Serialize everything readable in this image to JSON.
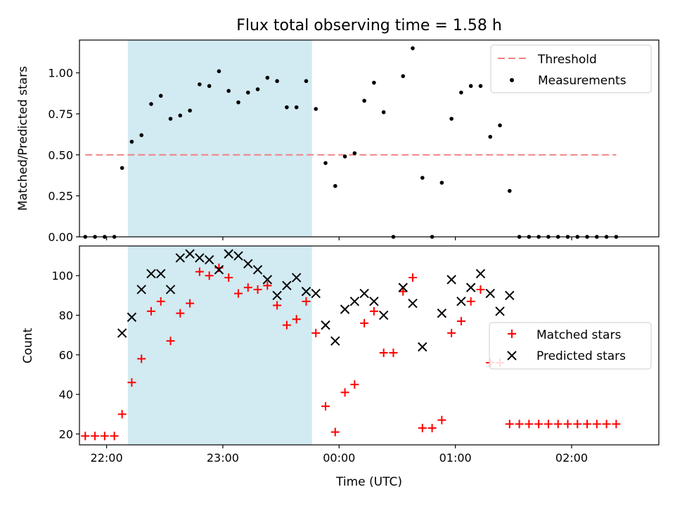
{
  "chart_data": [
    {
      "type": "scatter",
      "title": "Flux total observing time = 1.58 h",
      "xlabel": "",
      "ylabel": "Matched/Predicted stars",
      "ylim": [
        0,
        1.2
      ],
      "yticks": [
        0.0,
        0.25,
        0.5,
        0.75,
        1.0
      ],
      "ytick_labels": [
        "0.00",
        "0.25",
        "0.50",
        "0.75",
        "1.00"
      ],
      "xlim": [
        "21:46",
        "02:45"
      ],
      "shaded_interval": {
        "start": "22:11",
        "end": "23:46",
        "color": "#add8e6"
      },
      "threshold": {
        "name": "Threshold",
        "value": 0.5,
        "x_start": "21:49",
        "x_end": "02:23",
        "color": "#f08080"
      },
      "legend_placement": "top-right",
      "legend": [
        "Threshold",
        "Measurements"
      ],
      "series": [
        {
          "name": "Measurements",
          "color": "#000000",
          "marker": "dot",
          "points": [
            [
              "21:49",
              0
            ],
            [
              "21:54",
              0
            ],
            [
              "21:59",
              0
            ],
            [
              "22:04",
              0
            ],
            [
              "22:08",
              0.42
            ],
            [
              "22:13",
              0.58
            ],
            [
              "22:18",
              0.62
            ],
            [
              "22:23",
              0.81
            ],
            [
              "22:28",
              0.86
            ],
            [
              "22:33",
              0.72
            ],
            [
              "22:38",
              0.74
            ],
            [
              "22:43",
              0.77
            ],
            [
              "22:48",
              0.93
            ],
            [
              "22:53",
              0.92
            ],
            [
              "22:58",
              1.01
            ],
            [
              "23:03",
              0.89
            ],
            [
              "23:08",
              0.82
            ],
            [
              "23:13",
              0.88
            ],
            [
              "23:18",
              0.9
            ],
            [
              "23:23",
              0.97
            ],
            [
              "23:28",
              0.95
            ],
            [
              "23:33",
              0.79
            ],
            [
              "23:38",
              0.79
            ],
            [
              "23:43",
              0.95
            ],
            [
              "23:48",
              0.78
            ],
            [
              "23:53",
              0.45
            ],
            [
              "23:58",
              0.31
            ],
            [
              "00:03",
              0.49
            ],
            [
              "00:08",
              0.51
            ],
            [
              "00:13",
              0.83
            ],
            [
              "00:18",
              0.94
            ],
            [
              "00:23",
              0.76
            ],
            [
              "00:28",
              0
            ],
            [
              "00:33",
              0.98
            ],
            [
              "00:38",
              1.15
            ],
            [
              "00:43",
              0.36
            ],
            [
              "00:48",
              0
            ],
            [
              "00:53",
              0.33
            ],
            [
              "00:58",
              0.72
            ],
            [
              "01:03",
              0.88
            ],
            [
              "01:08",
              0.92
            ],
            [
              "01:13",
              0.92
            ],
            [
              "01:18",
              0.61
            ],
            [
              "01:23",
              0.68
            ],
            [
              "01:28",
              0.28
            ],
            [
              "01:33",
              0
            ],
            [
              "01:38",
              0
            ],
            [
              "01:43",
              0
            ],
            [
              "01:48",
              0
            ],
            [
              "01:53",
              0
            ],
            [
              "01:58",
              0
            ],
            [
              "02:03",
              0
            ],
            [
              "02:08",
              0
            ],
            [
              "02:13",
              0
            ],
            [
              "02:18",
              0
            ],
            [
              "02:23",
              0
            ]
          ]
        }
      ]
    },
    {
      "type": "scatter",
      "title": "",
      "xlabel": "Time (UTC)",
      "ylabel": "Count",
      "ylim": [
        14.5,
        115
      ],
      "yticks": [
        20,
        40,
        60,
        80,
        100
      ],
      "ytick_labels": [
        "20",
        "40",
        "60",
        "80",
        "100"
      ],
      "xlim": [
        "21:46",
        "02:45"
      ],
      "xticks": [
        "22:00",
        "23:00",
        "00:00",
        "01:00",
        "02:00"
      ],
      "xtick_labels": [
        "22:00",
        "23:00",
        "00:00",
        "01:00",
        "02:00"
      ],
      "shaded_interval": {
        "start": "22:11",
        "end": "23:46",
        "color": "#add8e6"
      },
      "legend_placement": "center-right",
      "legend": [
        "Matched stars",
        "Predicted stars"
      ],
      "series": [
        {
          "name": "Matched stars",
          "color": "#ff0000",
          "marker": "plus",
          "points": [
            [
              "21:49",
              19
            ],
            [
              "21:54",
              19
            ],
            [
              "21:59",
              19
            ],
            [
              "22:04",
              19
            ],
            [
              "22:08",
              30
            ],
            [
              "22:13",
              46
            ],
            [
              "22:18",
              58
            ],
            [
              "22:23",
              82
            ],
            [
              "22:28",
              87
            ],
            [
              "22:33",
              67
            ],
            [
              "22:38",
              81
            ],
            [
              "22:43",
              86
            ],
            [
              "22:48",
              102
            ],
            [
              "22:53",
              100
            ],
            [
              "22:58",
              104
            ],
            [
              "23:03",
              99
            ],
            [
              "23:08",
              91
            ],
            [
              "23:13",
              94
            ],
            [
              "23:18",
              93
            ],
            [
              "23:23",
              95
            ],
            [
              "23:28",
              85
            ],
            [
              "23:33",
              75
            ],
            [
              "23:38",
              78
            ],
            [
              "23:43",
              87
            ],
            [
              "23:48",
              71
            ],
            [
              "23:53",
              34
            ],
            [
              "23:58",
              21
            ],
            [
              "00:03",
              41
            ],
            [
              "00:08",
              45
            ],
            [
              "00:13",
              76
            ],
            [
              "00:18",
              82
            ],
            [
              "00:23",
              61
            ],
            [
              "00:28",
              61
            ],
            [
              "00:33",
              92
            ],
            [
              "00:38",
              99
            ],
            [
              "00:43",
              23
            ],
            [
              "00:48",
              23
            ],
            [
              "00:53",
              27
            ],
            [
              "00:58",
              71
            ],
            [
              "01:03",
              77
            ],
            [
              "01:08",
              87
            ],
            [
              "01:13",
              93
            ],
            [
              "01:18",
              56
            ],
            [
              "01:23",
              56
            ],
            [
              "01:28",
              25
            ],
            [
              "01:33",
              25
            ],
            [
              "01:38",
              25
            ],
            [
              "01:43",
              25
            ],
            [
              "01:48",
              25
            ],
            [
              "01:53",
              25
            ],
            [
              "01:58",
              25
            ],
            [
              "02:03",
              25
            ],
            [
              "02:08",
              25
            ],
            [
              "02:13",
              25
            ],
            [
              "02:18",
              25
            ],
            [
              "02:23",
              25
            ]
          ]
        },
        {
          "name": "Predicted stars",
          "color": "#000000",
          "marker": "x",
          "points": [
            [
              "22:08",
              71
            ],
            [
              "22:13",
              79
            ],
            [
              "22:18",
              93
            ],
            [
              "22:23",
              101
            ],
            [
              "22:28",
              101
            ],
            [
              "22:33",
              93
            ],
            [
              "22:38",
              109
            ],
            [
              "22:43",
              111
            ],
            [
              "22:48",
              109
            ],
            [
              "22:53",
              108
            ],
            [
              "22:58",
              103
            ],
            [
              "23:03",
              111
            ],
            [
              "23:08",
              110
            ],
            [
              "23:13",
              106
            ],
            [
              "23:18",
              103
            ],
            [
              "23:23",
              98
            ],
            [
              "23:28",
              90
            ],
            [
              "23:33",
              95
            ],
            [
              "23:38",
              99
            ],
            [
              "23:43",
              92
            ],
            [
              "23:48",
              91
            ],
            [
              "23:53",
              75
            ],
            [
              "23:58",
              67
            ],
            [
              "00:03",
              83
            ],
            [
              "00:08",
              87
            ],
            [
              "00:13",
              91
            ],
            [
              "00:18",
              87
            ],
            [
              "00:23",
              80
            ],
            [
              "00:33",
              94
            ],
            [
              "00:38",
              86
            ],
            [
              "00:43",
              64
            ],
            [
              "00:53",
              81
            ],
            [
              "00:58",
              98
            ],
            [
              "01:03",
              87
            ],
            [
              "01:08",
              94
            ],
            [
              "01:13",
              101
            ],
            [
              "01:18",
              91
            ],
            [
              "01:23",
              82
            ],
            [
              "01:28",
              90
            ]
          ]
        }
      ]
    }
  ]
}
